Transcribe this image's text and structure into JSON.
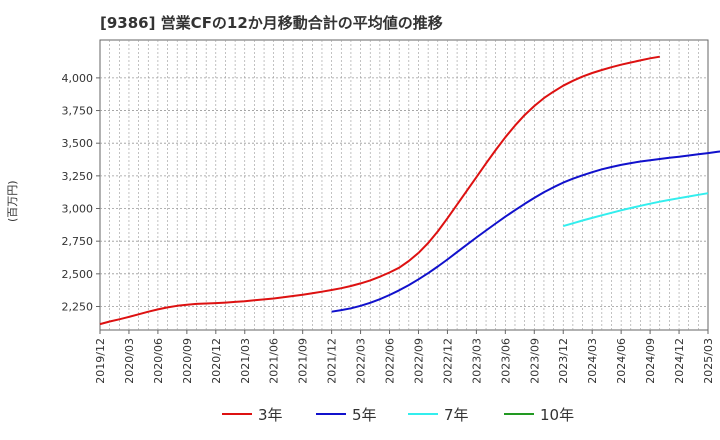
{
  "chart_data": {
    "type": "line",
    "title": "[9386]  営業CFの12か月移動合計の平均値の推移",
    "ylabel": "(百万円)",
    "xlabel": "",
    "y_ticks": [
      "2,250",
      "2,500",
      "2,750",
      "3,000",
      "3,250",
      "3,500",
      "3,750",
      "4,000"
    ],
    "y_tick_values": [
      2250,
      2500,
      2750,
      3000,
      3250,
      3500,
      3750,
      4000
    ],
    "ylim": [
      2070,
      4290
    ],
    "x_ticks": [
      "2019/12",
      "2020/03",
      "2020/06",
      "2020/09",
      "2020/12",
      "2021/03",
      "2021/06",
      "2021/09",
      "2021/12",
      "2022/03",
      "2022/06",
      "2022/09",
      "2022/12",
      "2023/03",
      "2023/06",
      "2023/09",
      "2023/12",
      "2024/03",
      "2024/06",
      "2024/09",
      "2024/12",
      "2025/03"
    ],
    "grid": true,
    "legend_position": "bottom",
    "series": [
      {
        "name": "3年",
        "color": "#dd1111",
        "start_index": 0,
        "values": [
          2115,
          2135,
          2152,
          2170,
          2190,
          2210,
          2228,
          2243,
          2255,
          2264,
          2270,
          2273,
          2276,
          2280,
          2285,
          2290,
          2297,
          2304,
          2311,
          2320,
          2330,
          2340,
          2351,
          2363,
          2376,
          2390,
          2407,
          2427,
          2450,
          2478,
          2510,
          2547,
          2598,
          2660,
          2735,
          2825,
          2925,
          3030,
          3135,
          3240,
          3345,
          3448,
          3545,
          3635,
          3715,
          3785,
          3845,
          3895,
          3940,
          3978,
          4010,
          4037,
          4060,
          4082,
          4101,
          4118,
          4134,
          4150,
          4162
        ]
      },
      {
        "name": "5年",
        "color": "#1111cc",
        "start_index": 24,
        "values": [
          2210,
          2222,
          2236,
          2255,
          2278,
          2306,
          2338,
          2374,
          2414,
          2458,
          2505,
          2556,
          2610,
          2666,
          2722,
          2778,
          2832,
          2885,
          2937,
          2987,
          3035,
          3081,
          3124,
          3163,
          3198,
          3228,
          3254,
          3278,
          3300,
          3318,
          3334,
          3348,
          3360,
          3370,
          3379,
          3388,
          3397,
          3406,
          3415,
          3424,
          3434,
          3443,
          3452
        ]
      },
      {
        "name": "7年",
        "color": "#33eeee",
        "start_index": 48,
        "values": [
          2865,
          2887,
          2908,
          2928,
          2948,
          2967,
          2986,
          3004,
          3021,
          3037,
          3052,
          3066,
          3079,
          3092,
          3105,
          3117
        ]
      },
      {
        "name": "10年",
        "color": "#229922",
        "start_index": null,
        "values": []
      }
    ]
  }
}
